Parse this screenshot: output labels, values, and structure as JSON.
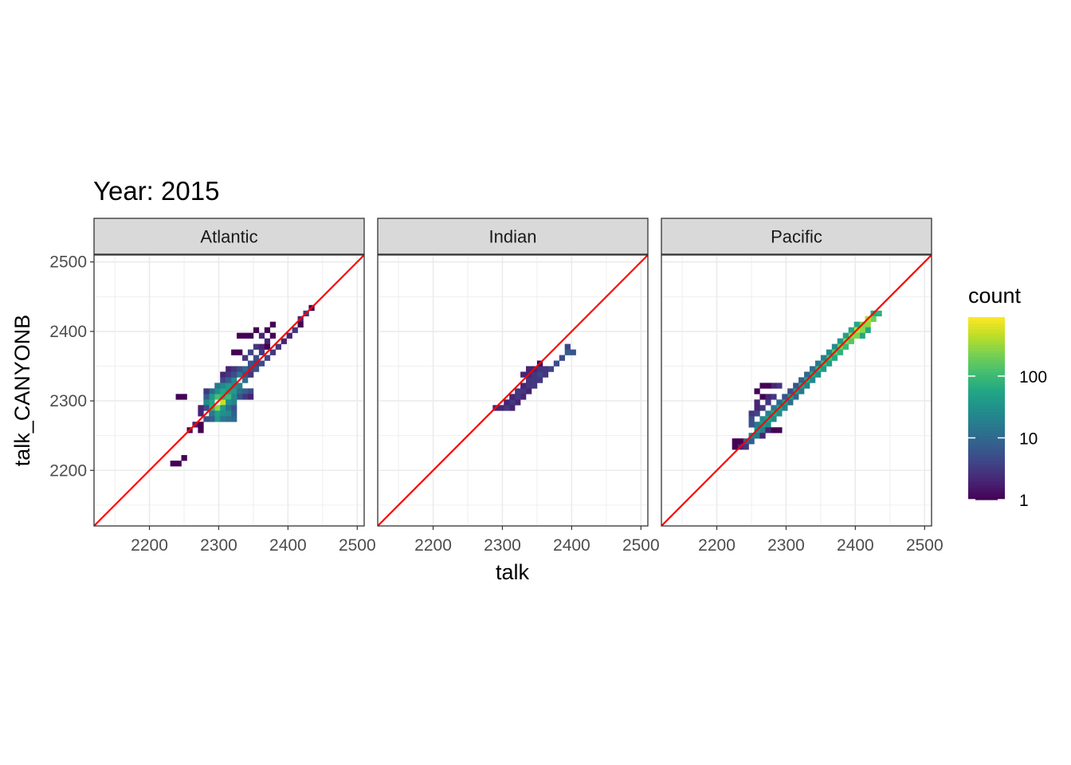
{
  "chart_data": {
    "type": "heatmap",
    "title": "Year: 2015",
    "xlabel": "talk",
    "ylabel": "talk_CANYONB",
    "xlim": [
      2120,
      2510
    ],
    "ylim": [
      2120,
      2510
    ],
    "x_ticks": [
      2200,
      2300,
      2400,
      2500
    ],
    "y_ticks": [
      2200,
      2300,
      2400,
      2500
    ],
    "x_tick_labels": [
      "2200",
      "2300",
      "2400",
      "2500"
    ],
    "y_tick_labels": [
      "2200",
      "2300",
      "2400",
      "2500"
    ],
    "grid": true,
    "bin_width": 8,
    "reference_line": {
      "slope": 1,
      "intercept": 0,
      "color": "#ff0000"
    },
    "legend": {
      "title": "count",
      "scale": "log10",
      "range": [
        1,
        900
      ],
      "breaks": [
        1,
        10,
        100
      ],
      "break_labels": [
        "1",
        "10",
        "100"
      ],
      "colormap": "viridis",
      "placement": "right"
    },
    "panels": [
      {
        "name": "Atlantic",
        "cells": [
          [
            2434,
            2434,
            1
          ],
          [
            2426,
            2426,
            3
          ],
          [
            2418,
            2418,
            2
          ],
          [
            2418,
            2410,
            1
          ],
          [
            2410,
            2402,
            3
          ],
          [
            2402,
            2394,
            2
          ],
          [
            2394,
            2386,
            2
          ],
          [
            2386,
            2378,
            3
          ],
          [
            2378,
            2370,
            3
          ],
          [
            2370,
            2362,
            4
          ],
          [
            2362,
            2354,
            5
          ],
          [
            2354,
            2346,
            6
          ],
          [
            2346,
            2338,
            8
          ],
          [
            2338,
            2330,
            12
          ],
          [
            2330,
            2322,
            20
          ],
          [
            2322,
            2314,
            40
          ],
          [
            2314,
            2306,
            100
          ],
          [
            2306,
            2298,
            500
          ],
          [
            2298,
            2290,
            300
          ],
          [
            2290,
            2282,
            60
          ],
          [
            2378,
            2410,
            1
          ],
          [
            2370,
            2402,
            1
          ],
          [
            2354,
            2402,
            1
          ],
          [
            2346,
            2394,
            1
          ],
          [
            2362,
            2394,
            2
          ],
          [
            2338,
            2394,
            1
          ],
          [
            2330,
            2394,
            1
          ],
          [
            2370,
            2386,
            2
          ],
          [
            2378,
            2394,
            1
          ],
          [
            2354,
            2378,
            3
          ],
          [
            2346,
            2370,
            4
          ],
          [
            2338,
            2362,
            3
          ],
          [
            2330,
            2370,
            1
          ],
          [
            2322,
            2370,
            1
          ],
          [
            2362,
            2378,
            2
          ],
          [
            2362,
            2370,
            3
          ],
          [
            2370,
            2378,
            1
          ],
          [
            2354,
            2362,
            5
          ],
          [
            2346,
            2354,
            6
          ],
          [
            2338,
            2346,
            10
          ],
          [
            2330,
            2338,
            15
          ],
          [
            2322,
            2330,
            25
          ],
          [
            2314,
            2322,
            40
          ],
          [
            2306,
            2314,
            60
          ],
          [
            2298,
            2306,
            120
          ],
          [
            2290,
            2298,
            60
          ],
          [
            2282,
            2290,
            15
          ],
          [
            2354,
            2354,
            4
          ],
          [
            2346,
            2346,
            5
          ],
          [
            2346,
            2338,
            3
          ],
          [
            2338,
            2338,
            6
          ],
          [
            2330,
            2346,
            5
          ],
          [
            2322,
            2346,
            3
          ],
          [
            2314,
            2346,
            2
          ],
          [
            2306,
            2338,
            2
          ],
          [
            2314,
            2338,
            3
          ],
          [
            2322,
            2338,
            5
          ],
          [
            2306,
            2330,
            4
          ],
          [
            2314,
            2330,
            8
          ],
          [
            2322,
            2322,
            25
          ],
          [
            2330,
            2314,
            12
          ],
          [
            2338,
            2314,
            8
          ],
          [
            2346,
            2314,
            5
          ],
          [
            2338,
            2306,
            3
          ],
          [
            2346,
            2306,
            2
          ],
          [
            2330,
            2306,
            6
          ],
          [
            2322,
            2306,
            25
          ],
          [
            2314,
            2314,
            40
          ],
          [
            2306,
            2322,
            25
          ],
          [
            2298,
            2322,
            15
          ],
          [
            2298,
            2314,
            30
          ],
          [
            2290,
            2314,
            10
          ],
          [
            2282,
            2314,
            3
          ],
          [
            2290,
            2306,
            40
          ],
          [
            2282,
            2306,
            8
          ],
          [
            2282,
            2298,
            25
          ],
          [
            2290,
            2290,
            80
          ],
          [
            2306,
            2306,
            80
          ],
          [
            2314,
            2298,
            30
          ],
          [
            2322,
            2298,
            20
          ],
          [
            2306,
            2290,
            40
          ],
          [
            2314,
            2290,
            12
          ],
          [
            2322,
            2290,
            6
          ],
          [
            2298,
            2282,
            50
          ],
          [
            2306,
            2282,
            30
          ],
          [
            2314,
            2282,
            25
          ],
          [
            2322,
            2282,
            8
          ],
          [
            2290,
            2282,
            15
          ],
          [
            2298,
            2274,
            40
          ],
          [
            2306,
            2274,
            15
          ],
          [
            2314,
            2274,
            12
          ],
          [
            2322,
            2274,
            10
          ],
          [
            2290,
            2274,
            8
          ],
          [
            2282,
            2274,
            6
          ],
          [
            2282,
            2290,
            5
          ],
          [
            2274,
            2290,
            2
          ],
          [
            2274,
            2282,
            2
          ],
          [
            2266,
            2266,
            2
          ],
          [
            2258,
            2258,
            1
          ],
          [
            2274,
            2266,
            1
          ],
          [
            2274,
            2258,
            1
          ],
          [
            2242,
            2306,
            1
          ],
          [
            2250,
            2306,
            1
          ],
          [
            2242,
            2210,
            1
          ],
          [
            2250,
            2218,
            1
          ],
          [
            2234,
            2210,
            1
          ]
        ]
      },
      {
        "name": "Indian",
        "cells": [
          [
            2402,
            2370,
            6
          ],
          [
            2394,
            2370,
            8
          ],
          [
            2394,
            2378,
            4
          ],
          [
            2386,
            2362,
            5
          ],
          [
            2378,
            2354,
            5
          ],
          [
            2370,
            2346,
            4
          ],
          [
            2362,
            2346,
            3
          ],
          [
            2362,
            2338,
            3
          ],
          [
            2354,
            2338,
            4
          ],
          [
            2354,
            2330,
            3
          ],
          [
            2346,
            2330,
            3
          ],
          [
            2346,
            2322,
            3
          ],
          [
            2338,
            2322,
            3
          ],
          [
            2338,
            2314,
            2
          ],
          [
            2330,
            2314,
            3
          ],
          [
            2330,
            2306,
            2
          ],
          [
            2322,
            2306,
            3
          ],
          [
            2322,
            2298,
            2
          ],
          [
            2314,
            2298,
            3
          ],
          [
            2314,
            2290,
            2
          ],
          [
            2306,
            2290,
            3
          ],
          [
            2298,
            2290,
            2
          ],
          [
            2290,
            2290,
            2
          ],
          [
            2306,
            2298,
            2
          ],
          [
            2314,
            2306,
            2
          ],
          [
            2322,
            2314,
            3
          ],
          [
            2330,
            2322,
            2
          ],
          [
            2338,
            2330,
            3
          ],
          [
            2346,
            2338,
            3
          ],
          [
            2330,
            2338,
            2
          ],
          [
            2338,
            2338,
            2
          ],
          [
            2346,
            2346,
            2
          ],
          [
            2354,
            2346,
            3
          ],
          [
            2338,
            2346,
            2
          ],
          [
            2354,
            2354,
            1
          ]
        ]
      },
      {
        "name": "Pacific",
        "cells": [
          [
            2434,
            2426,
            80
          ],
          [
            2426,
            2426,
            60
          ],
          [
            2426,
            2418,
            200
          ],
          [
            2418,
            2418,
            400
          ],
          [
            2418,
            2410,
            300
          ],
          [
            2418,
            2402,
            60
          ],
          [
            2410,
            2410,
            250
          ],
          [
            2410,
            2402,
            300
          ],
          [
            2410,
            2394,
            60
          ],
          [
            2402,
            2410,
            60
          ],
          [
            2402,
            2402,
            400
          ],
          [
            2402,
            2394,
            250
          ],
          [
            2394,
            2402,
            60
          ],
          [
            2394,
            2394,
            300
          ],
          [
            2394,
            2386,
            150
          ],
          [
            2386,
            2394,
            50
          ],
          [
            2386,
            2386,
            250
          ],
          [
            2386,
            2378,
            100
          ],
          [
            2378,
            2386,
            40
          ],
          [
            2378,
            2378,
            200
          ],
          [
            2378,
            2370,
            80
          ],
          [
            2370,
            2378,
            30
          ],
          [
            2370,
            2370,
            150
          ],
          [
            2370,
            2362,
            60
          ],
          [
            2362,
            2370,
            25
          ],
          [
            2362,
            2362,
            120
          ],
          [
            2362,
            2354,
            50
          ],
          [
            2354,
            2362,
            20
          ],
          [
            2354,
            2354,
            100
          ],
          [
            2354,
            2346,
            40
          ],
          [
            2346,
            2354,
            15
          ],
          [
            2346,
            2346,
            80
          ],
          [
            2346,
            2338,
            30
          ],
          [
            2338,
            2346,
            12
          ],
          [
            2338,
            2338,
            60
          ],
          [
            2338,
            2330,
            25
          ],
          [
            2330,
            2338,
            10
          ],
          [
            2330,
            2330,
            60
          ],
          [
            2330,
            2322,
            20
          ],
          [
            2322,
            2330,
            8
          ],
          [
            2322,
            2322,
            50
          ],
          [
            2322,
            2314,
            15
          ],
          [
            2314,
            2322,
            6
          ],
          [
            2314,
            2314,
            40
          ],
          [
            2314,
            2306,
            10
          ],
          [
            2306,
            2314,
            5
          ],
          [
            2306,
            2306,
            40
          ],
          [
            2306,
            2298,
            12
          ],
          [
            2298,
            2306,
            6
          ],
          [
            2298,
            2298,
            40
          ],
          [
            2298,
            2290,
            20
          ],
          [
            2290,
            2298,
            10
          ],
          [
            2290,
            2290,
            50
          ],
          [
            2290,
            2282,
            30
          ],
          [
            2282,
            2290,
            15
          ],
          [
            2282,
            2282,
            60
          ],
          [
            2282,
            2274,
            25
          ],
          [
            2274,
            2282,
            20
          ],
          [
            2274,
            2274,
            50
          ],
          [
            2274,
            2266,
            30
          ],
          [
            2266,
            2274,
            25
          ],
          [
            2266,
            2266,
            40
          ],
          [
            2266,
            2258,
            20
          ],
          [
            2258,
            2266,
            15
          ],
          [
            2258,
            2258,
            30
          ],
          [
            2258,
            2250,
            15
          ],
          [
            2250,
            2250,
            20
          ],
          [
            2250,
            2242,
            8
          ],
          [
            2242,
            2242,
            8
          ],
          [
            2242,
            2234,
            3
          ],
          [
            2234,
            2234,
            2
          ],
          [
            2234,
            2242,
            1
          ],
          [
            2226,
            2242,
            1
          ],
          [
            2226,
            2234,
            1
          ],
          [
            2290,
            2322,
            3
          ],
          [
            2282,
            2322,
            2
          ],
          [
            2274,
            2306,
            2
          ],
          [
            2266,
            2306,
            1
          ],
          [
            2258,
            2298,
            2
          ],
          [
            2258,
            2290,
            2
          ],
          [
            2250,
            2282,
            3
          ],
          [
            2250,
            2274,
            5
          ],
          [
            2250,
            2266,
            6
          ],
          [
            2258,
            2282,
            4
          ],
          [
            2266,
            2290,
            3
          ],
          [
            2274,
            2298,
            3
          ],
          [
            2282,
            2306,
            3
          ],
          [
            2274,
            2322,
            1
          ],
          [
            2266,
            2322,
            1
          ],
          [
            2258,
            2314,
            1
          ],
          [
            2290,
            2258,
            1
          ],
          [
            2282,
            2258,
            1
          ],
          [
            2274,
            2258,
            2
          ],
          [
            2266,
            2250,
            2
          ]
        ]
      }
    ]
  }
}
